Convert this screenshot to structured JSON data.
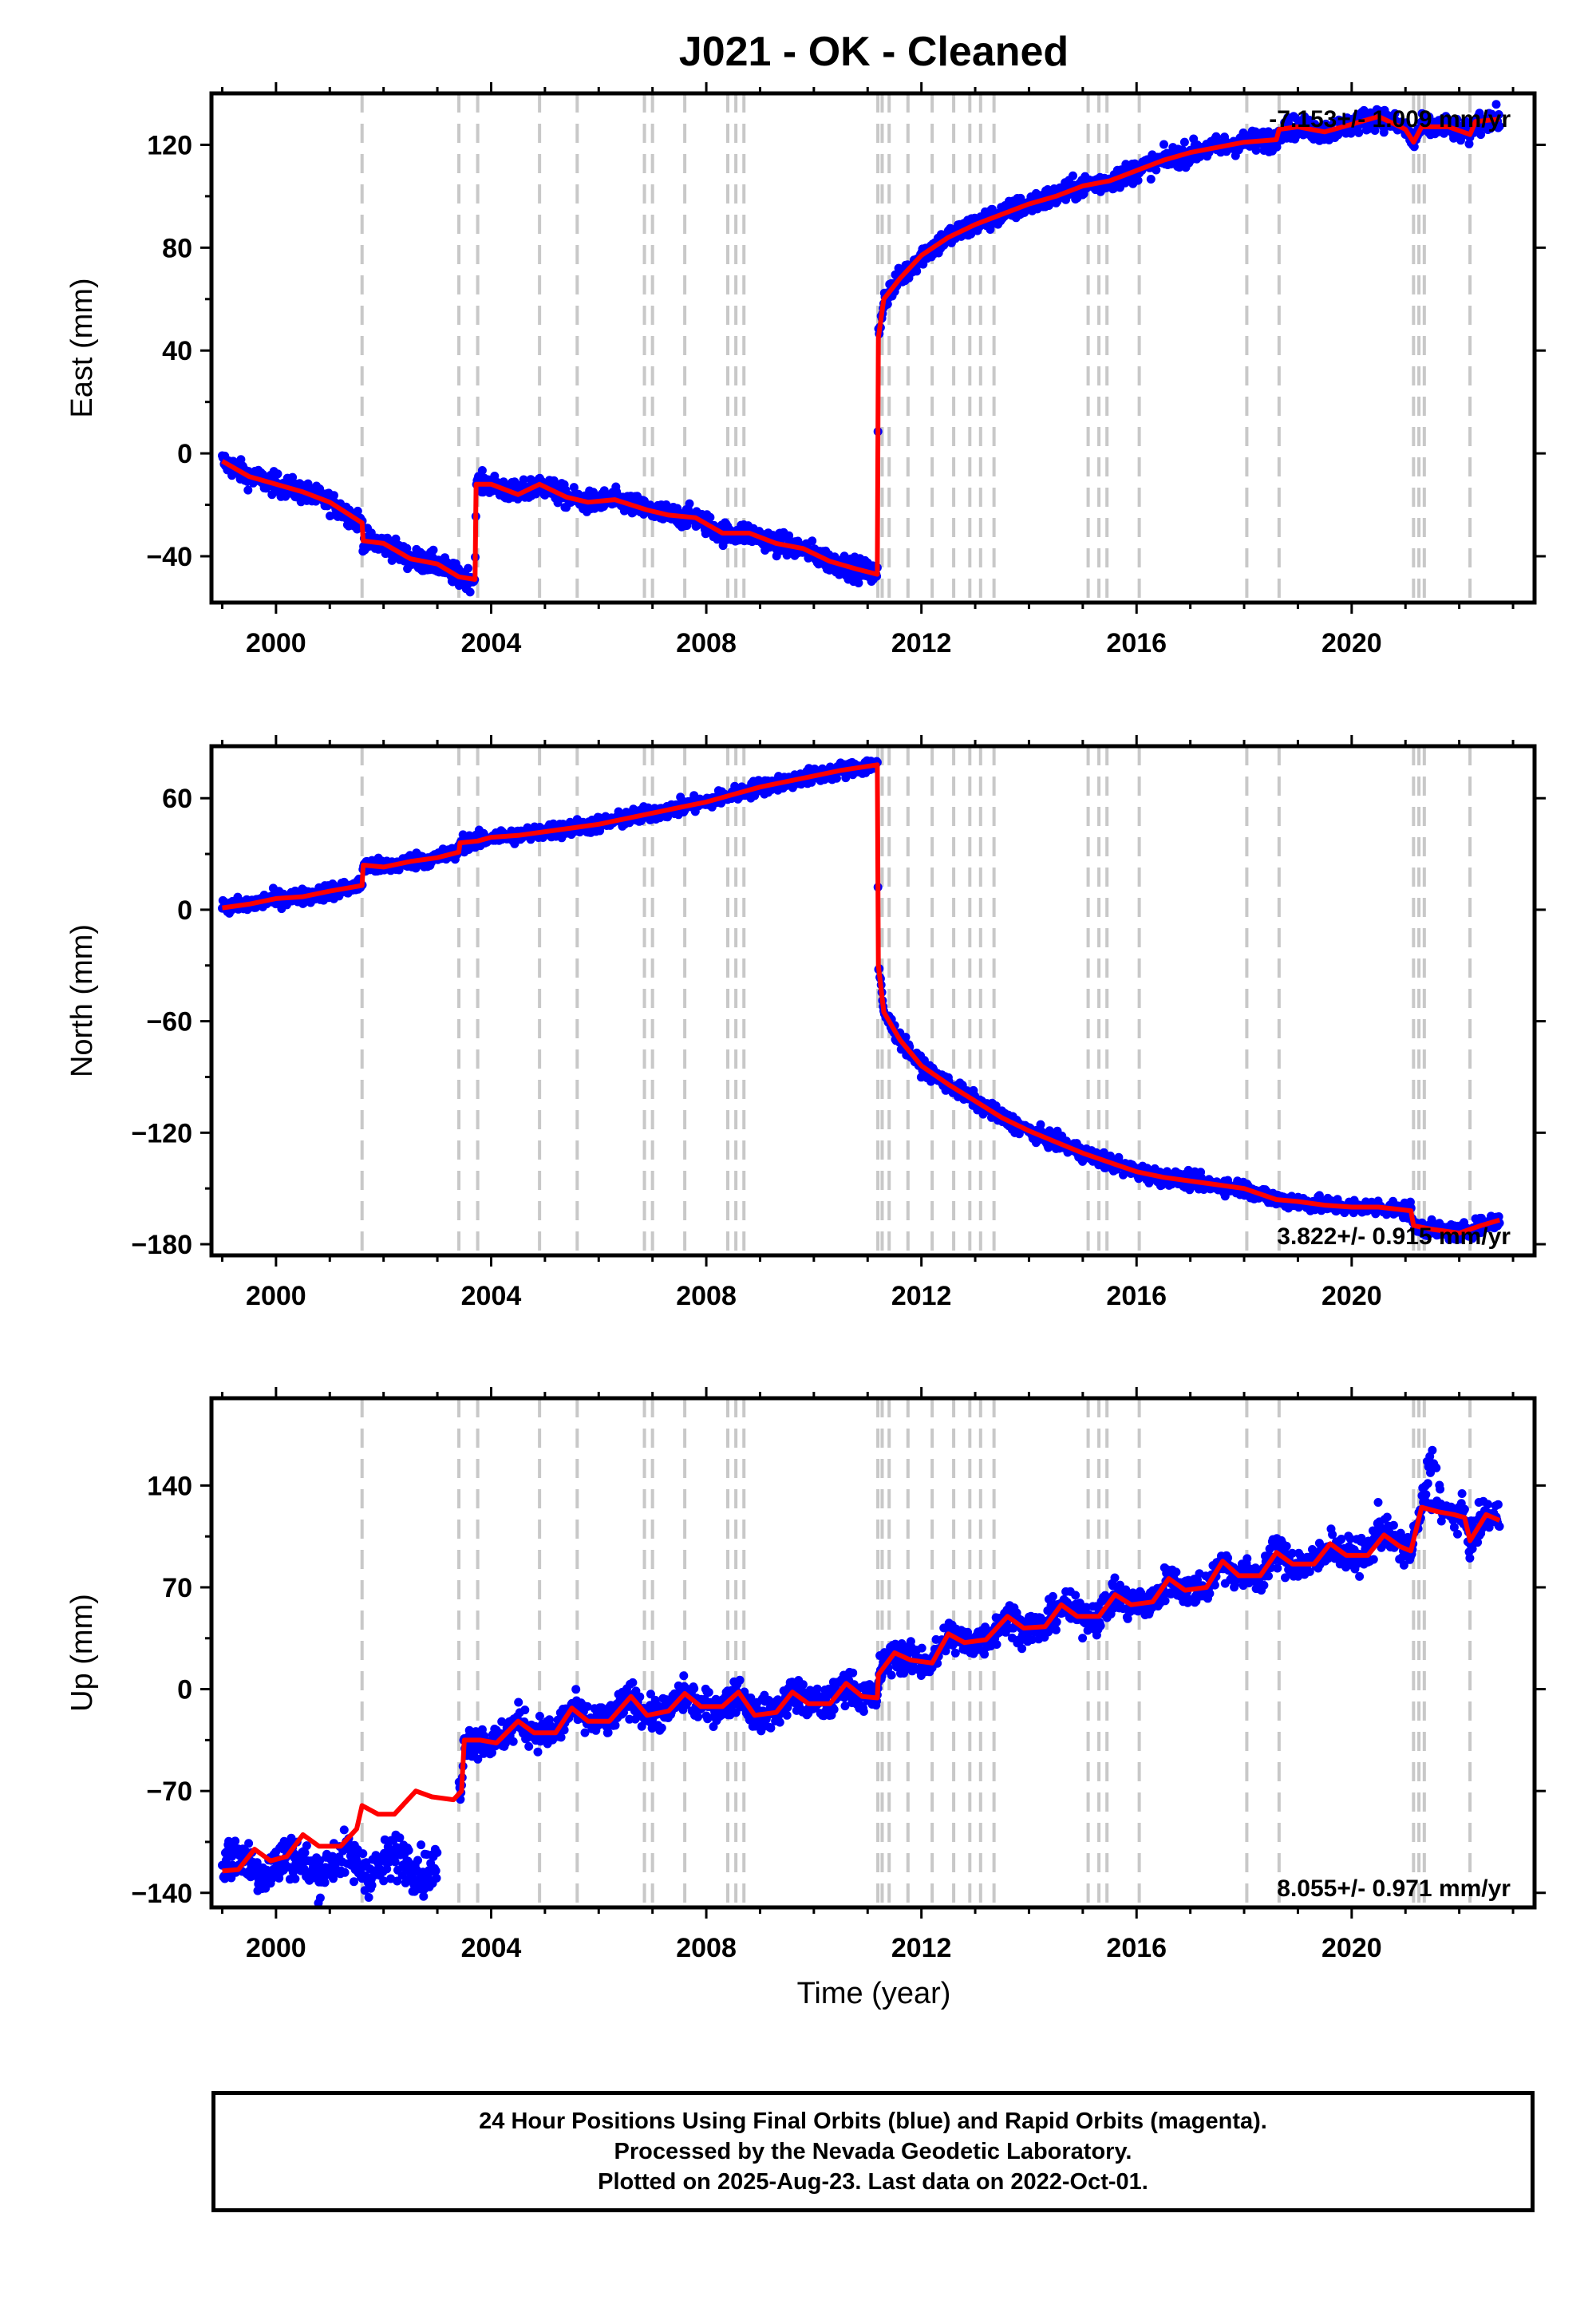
{
  "chart_data": {
    "title": "J021  - OK - Cleaned",
    "type": "scatter",
    "series_colors": {
      "points": "#0000ff",
      "model": "#ff0000",
      "event_lines": "#c8c8c8"
    },
    "x_label": "Time (year)",
    "x_range": [
      1998.8,
      2023.4
    ],
    "x_ticks": [
      2000,
      2004,
      2008,
      2012,
      2016,
      2020
    ],
    "event_lines": [
      2001.6,
      2003.4,
      2003.75,
      2004.9,
      2005.6,
      2006.85,
      2007.0,
      2007.6,
      2008.4,
      2008.55,
      2008.7,
      2011.19,
      2011.27,
      2011.4,
      2011.75,
      2012.2,
      2012.6,
      2012.9,
      2013.1,
      2013.35,
      2015.1,
      2015.3,
      2015.45,
      2016.05,
      2018.05,
      2018.65,
      2021.15,
      2021.25,
      2021.35,
      2022.2
    ],
    "panels": [
      {
        "id": "east",
        "ylabel": "East (mm)",
        "ylim": [
          -58,
          140
        ],
        "yticks": [
          -40,
          0,
          40,
          80,
          120
        ],
        "rate_text": "-7.153+/- 1.009 mm/yr",
        "rate_pos": "top-right",
        "model": [
          [
            1999.0,
            -3
          ],
          [
            1999.5,
            -9
          ],
          [
            2000.0,
            -12
          ],
          [
            2000.5,
            -15
          ],
          [
            2001.0,
            -19
          ],
          [
            2001.6,
            -27
          ],
          [
            2001.62,
            -34
          ],
          [
            2002.0,
            -35
          ],
          [
            2002.5,
            -41
          ],
          [
            2003.0,
            -43
          ],
          [
            2003.4,
            -48
          ],
          [
            2003.7,
            -49
          ],
          [
            2003.72,
            -12
          ],
          [
            2004.0,
            -12
          ],
          [
            2004.5,
            -16
          ],
          [
            2004.9,
            -12
          ],
          [
            2005.4,
            -17
          ],
          [
            2005.8,
            -19
          ],
          [
            2006.3,
            -18
          ],
          [
            2006.9,
            -22
          ],
          [
            2007.3,
            -24
          ],
          [
            2007.8,
            -25
          ],
          [
            2008.3,
            -31
          ],
          [
            2008.8,
            -31
          ],
          [
            2009.3,
            -35
          ],
          [
            2009.8,
            -37
          ],
          [
            2010.3,
            -42
          ],
          [
            2010.8,
            -45
          ],
          [
            2011.18,
            -47
          ],
          [
            2011.2,
            45
          ],
          [
            2011.3,
            60
          ],
          [
            2011.6,
            68
          ],
          [
            2012.0,
            77
          ],
          [
            2012.5,
            84
          ],
          [
            2013.0,
            89
          ],
          [
            2013.5,
            93
          ],
          [
            2014.0,
            97
          ],
          [
            2014.5,
            100
          ],
          [
            2015.0,
            104
          ],
          [
            2015.5,
            106
          ],
          [
            2016.0,
            110
          ],
          [
            2016.5,
            114
          ],
          [
            2017.0,
            117
          ],
          [
            2017.5,
            119
          ],
          [
            2018.0,
            121
          ],
          [
            2018.6,
            122
          ],
          [
            2018.65,
            126
          ],
          [
            2019.0,
            127
          ],
          [
            2019.5,
            125
          ],
          [
            2020.0,
            128
          ],
          [
            2020.5,
            131
          ],
          [
            2021.0,
            126
          ],
          [
            2021.15,
            121
          ],
          [
            2021.3,
            127
          ],
          [
            2021.8,
            127
          ],
          [
            2022.2,
            124
          ],
          [
            2022.3,
            129
          ],
          [
            2022.75,
            130
          ]
        ],
        "scatter_spread": 3
      },
      {
        "id": "north",
        "ylabel": "North (mm)",
        "ylim": [
          -186,
          88
        ],
        "yticks": [
          -180,
          -120,
          -60,
          0,
          60
        ],
        "rate_text": "3.822+/- 0.915 mm/yr",
        "rate_pos": "bottom-right",
        "model": [
          [
            1999.0,
            1
          ],
          [
            1999.5,
            3
          ],
          [
            2000.0,
            6
          ],
          [
            2000.5,
            7
          ],
          [
            2001.0,
            10
          ],
          [
            2001.6,
            13
          ],
          [
            2001.62,
            24
          ],
          [
            2002.0,
            23
          ],
          [
            2002.5,
            26
          ],
          [
            2003.0,
            28
          ],
          [
            2003.4,
            31
          ],
          [
            2003.42,
            36
          ],
          [
            2003.75,
            37
          ],
          [
            2004.0,
            39
          ],
          [
            2004.5,
            40
          ],
          [
            2005.0,
            42
          ],
          [
            2005.5,
            44
          ],
          [
            2006.0,
            46
          ],
          [
            2006.5,
            49
          ],
          [
            2007.0,
            52
          ],
          [
            2007.5,
            55
          ],
          [
            2008.0,
            58
          ],
          [
            2008.5,
            62
          ],
          [
            2009.0,
            66
          ],
          [
            2009.5,
            69
          ],
          [
            2010.0,
            72
          ],
          [
            2010.5,
            75
          ],
          [
            2011.18,
            78
          ],
          [
            2011.2,
            -30
          ],
          [
            2011.3,
            -55
          ],
          [
            2011.6,
            -70
          ],
          [
            2012.0,
            -84
          ],
          [
            2012.5,
            -94
          ],
          [
            2013.0,
            -103
          ],
          [
            2013.5,
            -112
          ],
          [
            2014.0,
            -119
          ],
          [
            2014.5,
            -125
          ],
          [
            2015.0,
            -131
          ],
          [
            2015.5,
            -136
          ],
          [
            2016.0,
            -141
          ],
          [
            2016.5,
            -144
          ],
          [
            2017.0,
            -146
          ],
          [
            2017.5,
            -148
          ],
          [
            2018.0,
            -150
          ],
          [
            2018.6,
            -156
          ],
          [
            2019.0,
            -157
          ],
          [
            2019.5,
            -159
          ],
          [
            2020.0,
            -160
          ],
          [
            2020.5,
            -160
          ],
          [
            2021.1,
            -162
          ],
          [
            2021.15,
            -170
          ],
          [
            2021.5,
            -172
          ],
          [
            2022.0,
            -174
          ],
          [
            2022.4,
            -170
          ],
          [
            2022.75,
            -167
          ]
        ],
        "scatter_spread": 3
      },
      {
        "id": "up",
        "ylabel": "Up (mm)",
        "ylim": [
          -150,
          200
        ],
        "yticks": [
          -140,
          -70,
          0,
          70,
          140
        ],
        "rate_text": "8.055+/- 0.971 mm/yr",
        "rate_pos": "bottom-right",
        "model": [
          [
            1999.0,
            -125
          ],
          [
            1999.3,
            -124
          ],
          [
            1999.6,
            -110
          ],
          [
            1999.9,
            -118
          ],
          [
            2000.2,
            -115
          ],
          [
            2000.5,
            -100
          ],
          [
            2000.8,
            -108
          ],
          [
            2001.2,
            -108
          ],
          [
            2001.5,
            -96
          ],
          [
            2001.6,
            -80
          ],
          [
            2001.9,
            -86
          ],
          [
            2002.2,
            -86
          ],
          [
            2002.6,
            -70
          ],
          [
            2002.9,
            -74
          ],
          [
            2003.3,
            -76
          ],
          [
            2003.45,
            -70
          ],
          [
            2003.5,
            -35
          ],
          [
            2003.8,
            -35
          ],
          [
            2004.1,
            -37
          ],
          [
            2004.5,
            -22
          ],
          [
            2004.8,
            -30
          ],
          [
            2005.2,
            -30
          ],
          [
            2005.5,
            -13
          ],
          [
            2005.8,
            -22
          ],
          [
            2006.2,
            -22
          ],
          [
            2006.6,
            -5
          ],
          [
            2006.9,
            -18
          ],
          [
            2007.3,
            -15
          ],
          [
            2007.6,
            -3
          ],
          [
            2007.9,
            -12
          ],
          [
            2008.3,
            -12
          ],
          [
            2008.6,
            -2
          ],
          [
            2008.9,
            -18
          ],
          [
            2009.3,
            -16
          ],
          [
            2009.6,
            -2
          ],
          [
            2009.9,
            -10
          ],
          [
            2010.3,
            -10
          ],
          [
            2010.6,
            4
          ],
          [
            2010.9,
            -5
          ],
          [
            2011.18,
            -6
          ],
          [
            2011.2,
            10
          ],
          [
            2011.5,
            25
          ],
          [
            2011.8,
            20
          ],
          [
            2012.2,
            18
          ],
          [
            2012.5,
            38
          ],
          [
            2012.8,
            32
          ],
          [
            2013.2,
            34
          ],
          [
            2013.6,
            50
          ],
          [
            2013.9,
            42
          ],
          [
            2014.3,
            43
          ],
          [
            2014.6,
            58
          ],
          [
            2014.9,
            50
          ],
          [
            2015.3,
            50
          ],
          [
            2015.6,
            65
          ],
          [
            2015.9,
            58
          ],
          [
            2016.3,
            60
          ],
          [
            2016.6,
            76
          ],
          [
            2016.9,
            68
          ],
          [
            2017.3,
            70
          ],
          [
            2017.6,
            88
          ],
          [
            2017.9,
            78
          ],
          [
            2018.3,
            78
          ],
          [
            2018.6,
            94
          ],
          [
            2018.9,
            86
          ],
          [
            2019.3,
            86
          ],
          [
            2019.6,
            100
          ],
          [
            2019.9,
            92
          ],
          [
            2020.3,
            92
          ],
          [
            2020.6,
            106
          ],
          [
            2020.9,
            98
          ],
          [
            2021.1,
            95
          ],
          [
            2021.3,
            125
          ],
          [
            2021.6,
            122
          ],
          [
            2021.9,
            120
          ],
          [
            2022.1,
            118
          ],
          [
            2022.2,
            102
          ],
          [
            2022.5,
            120
          ],
          [
            2022.75,
            116
          ]
        ],
        "scatter_spread": 8,
        "spikes": [
          [
            2021.3,
            2021.7,
            55
          ],
          [
            2020.3,
            2020.7,
            20
          ]
        ]
      }
    ]
  },
  "footer": {
    "line1": "24 Hour Positions Using Final Orbits (blue) and Rapid Orbits (magenta).",
    "line2": "Processed by the Nevada Geodetic Laboratory.",
    "line3": "Plotted on 2025-Aug-23. Last data on 2022-Oct-01."
  }
}
